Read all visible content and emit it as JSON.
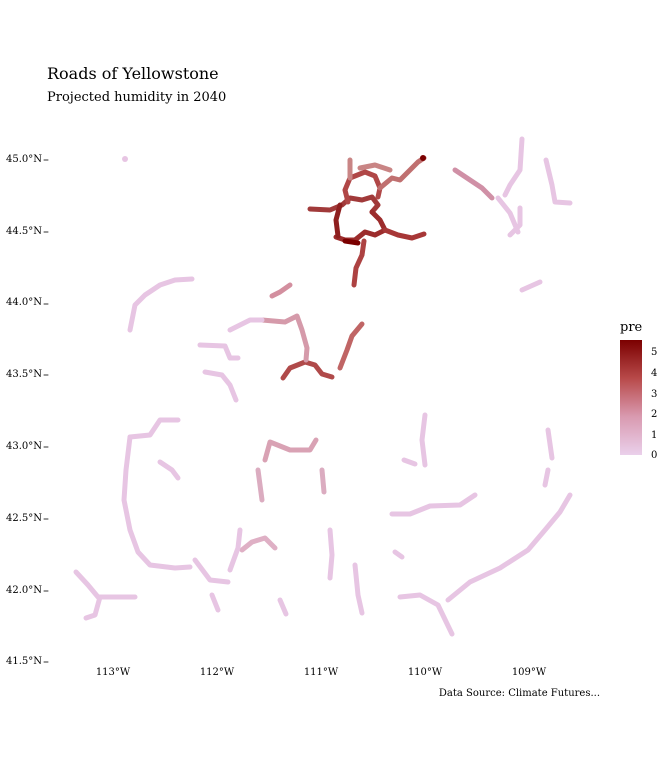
{
  "title": "Roads of Yellowstone",
  "subtitle": "Projected humidity in 2040",
  "caption": "Data Source: Climate Futures...",
  "legend": {
    "title": "pre",
    "ticks": [
      "5",
      "4",
      "3",
      "2",
      "1",
      "0"
    ],
    "colors": {
      "low": "#ead0eb",
      "mid": "#d99ab0",
      "high": "#7b0000"
    }
  },
  "axes": {
    "y_ticks": [
      "45.0°N",
      "44.5°N",
      "44.0°N",
      "43.5°N",
      "43.0°N",
      "42.5°N",
      "42.0°N",
      "41.5°N"
    ],
    "x_ticks": [
      "113°W",
      "112°W",
      "111°W",
      "110°W",
      "109°W"
    ]
  }
}
